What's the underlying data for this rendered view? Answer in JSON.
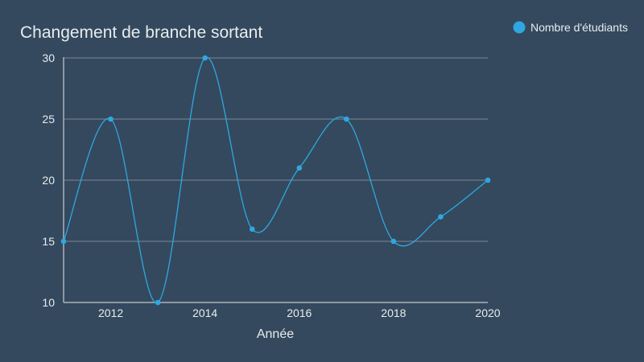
{
  "chart_data": {
    "type": "line",
    "title": "Changement de branche sortant",
    "xlabel": "Année",
    "ylabel": "",
    "x": [
      2011,
      2012,
      2013,
      2014,
      2015,
      2016,
      2017,
      2018,
      2019,
      2020
    ],
    "xlim": [
      2011,
      2020
    ],
    "ylim": [
      10,
      30
    ],
    "x_ticks": [
      2012,
      2014,
      2016,
      2018,
      2020
    ],
    "y_ticks": [
      10,
      15,
      20,
      25,
      30
    ],
    "grid": true,
    "legend_position": "top-right",
    "series": [
      {
        "name": "Nombre d'étudiants",
        "values": [
          15,
          25,
          10,
          30,
          16,
          21,
          25,
          15,
          17,
          20
        ]
      }
    ]
  },
  "colors": {
    "background": "#34495e",
    "series": "#2ea8e0",
    "grid": "#6d7b89",
    "axis": "#a9b2bb",
    "text": "#e8ecef"
  }
}
